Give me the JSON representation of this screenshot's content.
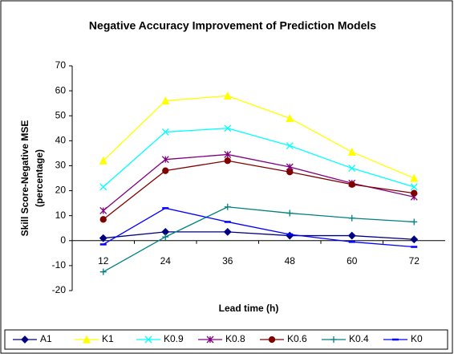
{
  "chart_data": {
    "type": "line",
    "title": "Negative Accuracy Improvement of Prediction Models",
    "x_label": "Lead time (h)",
    "y_label": [
      "Skill Score-Negative MSE",
      "(percentage)"
    ],
    "categories": [
      "12",
      "24",
      "36",
      "48",
      "60",
      "72"
    ],
    "ylim": [
      -20,
      70
    ],
    "yticks": [
      -20,
      -10,
      0,
      10,
      20,
      30,
      40,
      50,
      60,
      70
    ],
    "series": [
      {
        "name": "A1",
        "color": "#000080",
        "marker": "diamond",
        "values": [
          1,
          3.5,
          3.5,
          2,
          2,
          0.5
        ]
      },
      {
        "name": "K1",
        "color": "#ffff00",
        "marker": "triangle",
        "values": [
          32,
          56,
          58,
          49,
          35.5,
          25
        ]
      },
      {
        "name": "K0.9",
        "color": "#00ffff",
        "marker": "x",
        "values": [
          21.5,
          43.5,
          45,
          38,
          29,
          21.5
        ]
      },
      {
        "name": "K0.8",
        "color": "#800080",
        "marker": "star",
        "values": [
          12,
          32.5,
          34.5,
          29.5,
          23,
          17.5
        ]
      },
      {
        "name": "K0.6",
        "color": "#800000",
        "marker": "circle",
        "values": [
          8.5,
          28,
          32,
          27.5,
          22.5,
          19
        ]
      },
      {
        "name": "K0.4",
        "color": "#008080",
        "marker": "plus",
        "values": [
          -12.5,
          1.5,
          13.5,
          11,
          9,
          7.5
        ]
      },
      {
        "name": "K0",
        "color": "#0000ff",
        "marker": "dash",
        "values": [
          -1.5,
          13,
          7.5,
          2.5,
          -0.5,
          -2.5
        ]
      }
    ]
  }
}
